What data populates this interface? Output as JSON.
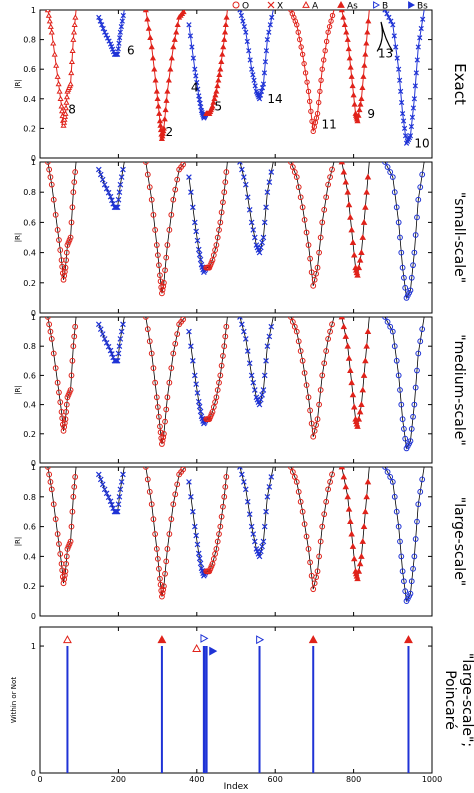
{
  "figure": {
    "x_label": "Index",
    "x_ticks": [
      "0",
      "200",
      "400",
      "600",
      "800",
      "1000"
    ],
    "legend": [
      {
        "symbol": "o",
        "label": "O",
        "color": "#e0221a"
      },
      {
        "symbol": "x",
        "label": "X",
        "color": "#e0221a"
      },
      {
        "symbol": "tri-open",
        "label": "A",
        "color": "#e0221a"
      },
      {
        "symbol": "tri-filled",
        "label": "As",
        "color": "#e0221a"
      },
      {
        "symbol": "rtri-open",
        "label": "B",
        "color": "#1f33d6"
      },
      {
        "symbol": "rtri-filled",
        "label": "Bs",
        "color": "#1f33d6"
      }
    ],
    "colors": {
      "red": "#e0221a",
      "blue": "#1f33d6",
      "line": "#000000"
    }
  },
  "chart_data": [
    {
      "type": "line",
      "panel_title": "Exact",
      "ylabel": "|R|",
      "yticks": [
        "0",
        "0.2",
        "0.4",
        "0.6",
        "0.8",
        "1"
      ],
      "ylim": [
        0,
        1
      ],
      "xlim": [
        0,
        1000
      ],
      "series": [
        {
          "label": "8",
          "color": "red",
          "marker": "tri-open",
          "x": [
            20,
            30,
            45,
            55,
            60,
            65,
            70,
            78,
            85,
            92
          ],
          "y": [
            1.0,
            0.85,
            0.55,
            0.35,
            0.22,
            0.3,
            0.45,
            0.5,
            0.8,
            1.0
          ]
        },
        {
          "label": "6",
          "color": "blue",
          "marker": "x",
          "x": [
            150,
            165,
            180,
            190,
            198,
            205,
            215
          ],
          "y": [
            0.95,
            0.85,
            0.77,
            0.7,
            0.7,
            0.85,
            1.0
          ]
        },
        {
          "label": "2",
          "color": "red",
          "marker": "tri-filled",
          "x": [
            270,
            285,
            298,
            306,
            311,
            316,
            325,
            340,
            355,
            370
          ],
          "y": [
            1.0,
            0.75,
            0.45,
            0.25,
            0.13,
            0.2,
            0.45,
            0.75,
            0.95,
            1.0
          ]
        },
        {
          "label": "4",
          "color": "blue",
          "marker": "x",
          "x": [
            380,
            395,
            405,
            412,
            418,
            424
          ],
          "y": [
            0.9,
            0.6,
            0.42,
            0.32,
            0.27,
            0.3
          ]
        },
        {
          "label": "5",
          "color": "red",
          "marker": "tri-filled",
          "x": [
            424,
            432,
            440,
            450,
            460,
            470,
            478
          ],
          "y": [
            0.3,
            0.3,
            0.35,
            0.45,
            0.6,
            0.8,
            1.0
          ]
        },
        {
          "label": "14",
          "color": "blue",
          "marker": "x",
          "x": [
            510,
            525,
            540,
            552,
            560,
            570,
            580,
            595
          ],
          "y": [
            1.0,
            0.85,
            0.6,
            0.45,
            0.4,
            0.5,
            0.8,
            1.0
          ]
        },
        {
          "label": "11",
          "color": "red",
          "marker": "o",
          "x": [
            640,
            655,
            670,
            685,
            697,
            708,
            720,
            735,
            750
          ],
          "y": [
            1.0,
            0.9,
            0.7,
            0.45,
            0.18,
            0.3,
            0.6,
            0.85,
            1.0
          ]
        },
        {
          "label": "9",
          "color": "red",
          "marker": "tri-filled",
          "x": [
            770,
            785,
            795,
            805,
            810,
            820,
            830,
            840
          ],
          "y": [
            1.0,
            0.8,
            0.55,
            0.3,
            0.25,
            0.4,
            0.7,
            1.0
          ]
        },
        {
          "label": "10",
          "color": "blue",
          "marker": "x",
          "x": [
            880,
            900,
            915,
            925,
            935,
            945,
            955,
            965,
            980
          ],
          "y": [
            1.0,
            0.9,
            0.6,
            0.3,
            0.1,
            0.15,
            0.4,
            0.75,
            1.0
          ]
        }
      ],
      "annotations": [
        {
          "text": "8",
          "x": 72,
          "y": 0.3
        },
        {
          "text": "6",
          "x": 222,
          "y": 0.7
        },
        {
          "text": "2",
          "x": 320,
          "y": 0.15
        },
        {
          "text": "4",
          "x": 385,
          "y": 0.45
        },
        {
          "text": "5",
          "x": 445,
          "y": 0.32
        },
        {
          "text": "14",
          "x": 580,
          "y": 0.37
        },
        {
          "text": "11",
          "x": 718,
          "y": 0.2
        },
        {
          "text": "9",
          "x": 835,
          "y": 0.27
        },
        {
          "text": "13",
          "x": 862,
          "y": 0.68
        },
        {
          "text": "10",
          "x": 955,
          "y": 0.07
        }
      ]
    },
    {
      "type": "scatter",
      "panel_title": "\"small-scale\"",
      "ylabel": "|R|",
      "yticks": [
        "0",
        "0.2",
        "0.4",
        "0.6",
        "0.8",
        "1"
      ],
      "ylim": [
        0,
        1
      ],
      "xlim": [
        0,
        1000
      ]
    },
    {
      "type": "scatter",
      "panel_title": "\"medium-scale\"",
      "ylabel": "|R|",
      "yticks": [
        "0",
        "0.2",
        "0.4",
        "0.6",
        "0.8",
        "1"
      ],
      "ylim": [
        0,
        1
      ],
      "xlim": [
        0,
        1000
      ]
    },
    {
      "type": "scatter",
      "panel_title": "\"large-scale\"",
      "ylabel": "|R|",
      "yticks": [
        "0",
        "0.2",
        "0.4",
        "0.6",
        "0.8",
        "1"
      ],
      "ylim": [
        0,
        1
      ],
      "xlim": [
        0,
        1000
      ]
    },
    {
      "type": "bar",
      "panel_title": "\"large-scale\"; Poincaré",
      "ylabel": "Within or Not",
      "yticks": [
        "0",
        "1"
      ],
      "ylim": [
        0,
        1.15
      ],
      "xlim": [
        0,
        1000
      ],
      "bars": [
        {
          "x": 70,
          "marker": "tri-open",
          "color": "red"
        },
        {
          "x": 311,
          "marker": "tri-filled",
          "color": "red"
        },
        {
          "x": 418,
          "marker": "rtri-open",
          "color": "blue"
        },
        {
          "x": 420,
          "marker": "tri-open",
          "color": "red"
        },
        {
          "x": 425,
          "marker": "rtri-filled",
          "color": "blue"
        },
        {
          "x": 560,
          "marker": "rtri-open",
          "color": "blue"
        },
        {
          "x": 697,
          "marker": "tri-filled",
          "color": "red"
        },
        {
          "x": 940,
          "marker": "tri-filled",
          "color": "red"
        }
      ]
    }
  ]
}
